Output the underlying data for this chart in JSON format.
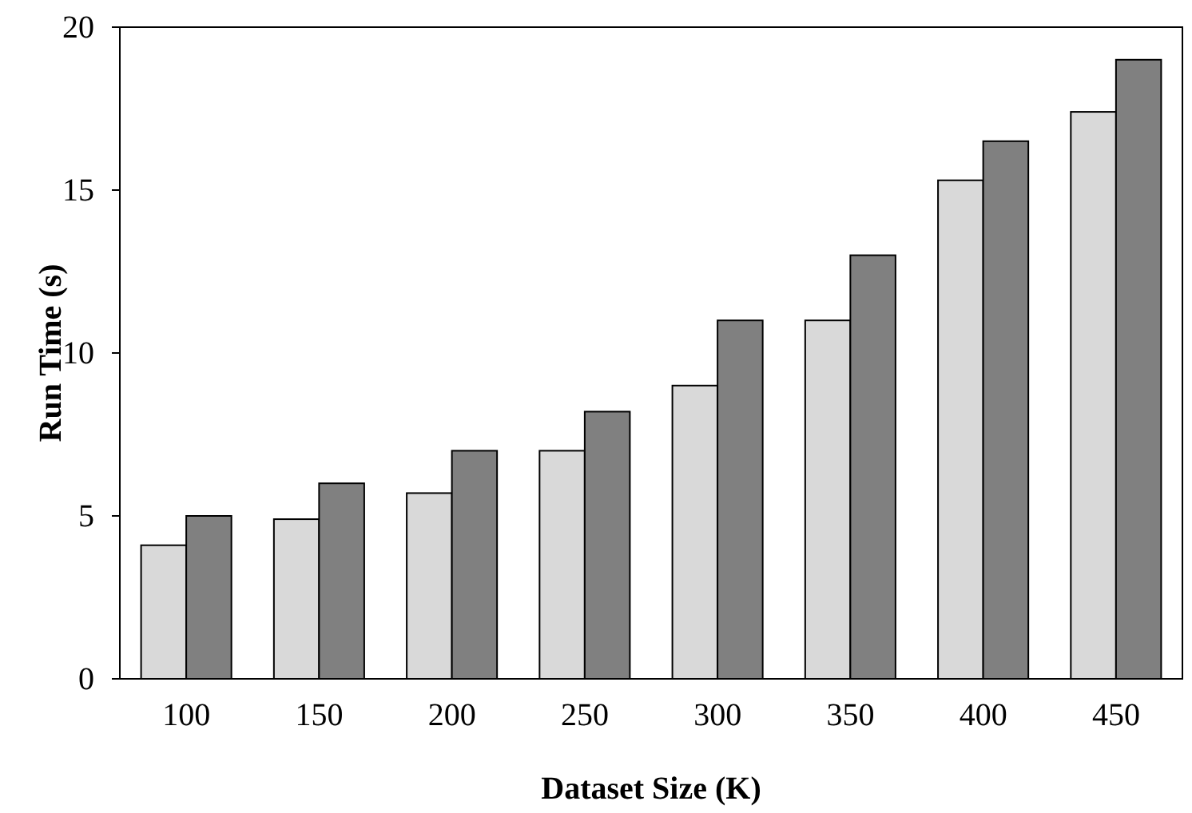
{
  "chart_data": {
    "type": "bar",
    "xlabel": "Dataset Size (K)",
    "ylabel": "Run Time (s)",
    "categories": [
      "100",
      "150",
      "200",
      "250",
      "300",
      "350",
      "400",
      "450"
    ],
    "series": [
      {
        "color": "#d9d9d9",
        "values": [
          4.1,
          4.9,
          5.7,
          7.0,
          9.0,
          11.0,
          15.3,
          17.4
        ]
      },
      {
        "color": "#808080",
        "values": [
          5.0,
          6.0,
          7.0,
          8.2,
          11.0,
          13.0,
          16.5,
          19.0
        ]
      }
    ],
    "ylim": [
      0,
      20
    ],
    "yticks": [
      0,
      5,
      10,
      15,
      20
    ]
  }
}
